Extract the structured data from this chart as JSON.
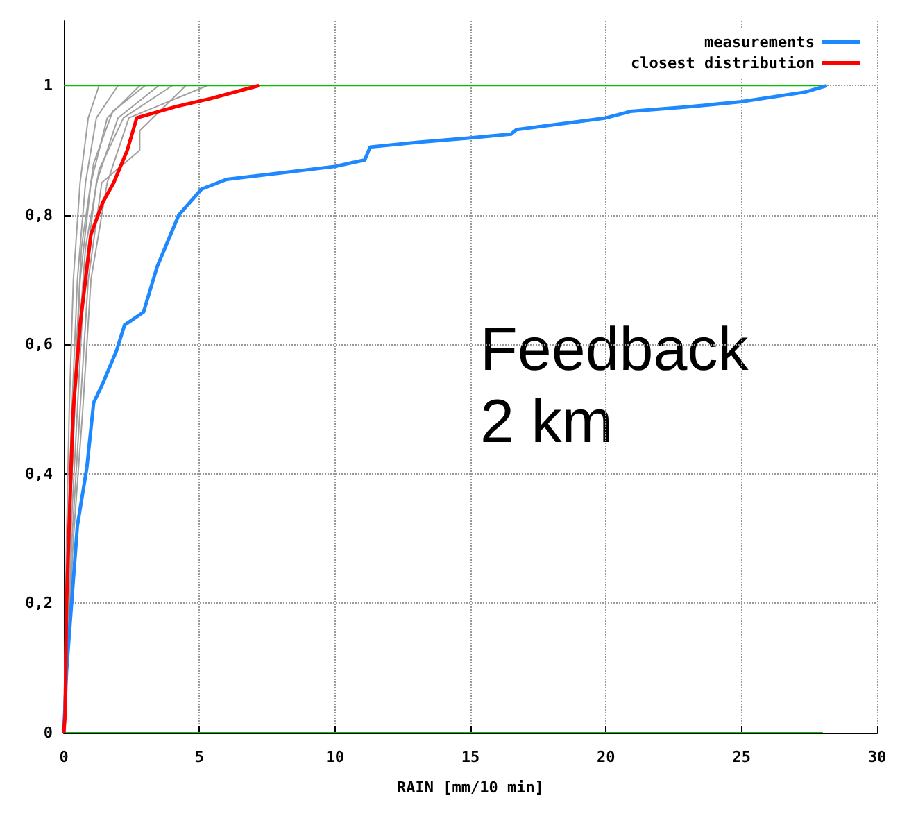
{
  "chart_data": {
    "type": "line",
    "xlabel": "RAIN [mm/10 min]",
    "xlim": [
      0,
      30
    ],
    "xticks": [
      0,
      5,
      10,
      15,
      20,
      25,
      30
    ],
    "ylim": [
      0,
      1.1
    ],
    "yticks": [
      0,
      {
        "value": 0.2,
        "label": "0,2"
      },
      {
        "value": 0.4,
        "label": "0,4"
      },
      {
        "value": 0.6,
        "label": "0,6"
      },
      {
        "value": 0.8,
        "label": "0,8"
      },
      1
    ],
    "grid": true,
    "legend": "top right",
    "marker": "none",
    "line_style": "solid",
    "annotations": [
      "Feedback\n2 km"
    ],
    "series": [
      {
        "color": "#a0a0a0",
        "x": [
          0,
          0.1,
          0.2,
          0.35,
          0.6,
          0.9,
          1.3
        ],
        "values": [
          0,
          0.3,
          0.5,
          0.7,
          0.85,
          0.95,
          1
        ]
      },
      {
        "color": "#a0a0a0",
        "x": [
          0,
          0.15,
          0.3,
          0.5,
          0.8,
          1.2,
          2
        ],
        "values": [
          0,
          0.3,
          0.5,
          0.7,
          0.85,
          0.95,
          1
        ]
      },
      {
        "color": "#a0a0a0",
        "x": [
          0,
          0.2,
          0.4,
          0.6,
          1,
          1.6,
          2.8
        ],
        "values": [
          0,
          0.3,
          0.5,
          0.7,
          0.85,
          0.95,
          1
        ]
      },
      {
        "color": "#a0a0a0",
        "x": [
          0,
          0.25,
          0.5,
          0.75,
          1.2,
          2,
          3.5
        ],
        "values": [
          0,
          0.3,
          0.5,
          0.7,
          0.85,
          0.95,
          1
        ]
      },
      {
        "color": "#a0a0a0",
        "x": [
          0,
          0.3,
          0.6,
          0.9,
          1.4,
          2.8,
          2.8,
          4.5
        ],
        "values": [
          0,
          0.3,
          0.5,
          0.7,
          0.85,
          0.9,
          0.93,
          1
        ]
      },
      {
        "color": "#a0a0a0",
        "x": [
          0,
          0.35,
          0.7,
          1,
          1.6,
          2.4,
          5.3
        ],
        "values": [
          0,
          0.3,
          0.5,
          0.7,
          0.85,
          0.95,
          1
        ]
      },
      {
        "color": "#a0a0a0",
        "x": [
          0,
          0.15,
          0.35,
          0.65,
          1.1,
          1.8,
          3
        ],
        "values": [
          0,
          0.25,
          0.5,
          0.75,
          0.88,
          0.96,
          1
        ]
      },
      {
        "color": "#a0a0a0",
        "x": [
          0,
          0.25,
          0.45,
          0.8,
          1.3,
          2.2,
          4
        ],
        "values": [
          0,
          0.35,
          0.55,
          0.75,
          0.87,
          0.95,
          1
        ]
      },
      {
        "color": "#00c000",
        "x": [
          0,
          28
        ],
        "values": [
          1,
          1
        ]
      },
      {
        "color": "#00c000",
        "x": [
          0,
          28
        ],
        "values": [
          0,
          0
        ]
      },
      {
        "name": "measurements",
        "color": "#1e88ff",
        "x": [
          0,
          0.1,
          0.25,
          0.5,
          0.85,
          1.1,
          1.44,
          1.94,
          2.24,
          2.94,
          3.44,
          4.24,
          5.08,
          6,
          8,
          10,
          11.1,
          11.3,
          13,
          15,
          16.5,
          16.7,
          20,
          20.9,
          23,
          25,
          27.35,
          28.15
        ],
        "values": [
          0,
          0.095,
          0.18,
          0.32,
          0.41,
          0.51,
          0.54,
          0.59,
          0.63,
          0.65,
          0.72,
          0.8,
          0.84,
          0.855,
          0.865,
          0.875,
          0.885,
          0.905,
          0.912,
          0.919,
          0.925,
          0.932,
          0.95,
          0.96,
          0.967,
          0.975,
          0.99,
          1
        ]
      },
      {
        "name": "closest distribution",
        "color": "#ff0000",
        "x": [
          0,
          0.05,
          0.1,
          0.3,
          0.35,
          0.6,
          1,
          1.44,
          1.84,
          2.34,
          2.69,
          4.09,
          5.43,
          7.2
        ],
        "values": [
          0,
          0.03,
          0.2,
          0.45,
          0.5,
          0.63,
          0.77,
          0.82,
          0.85,
          0.9,
          0.95,
          0.967,
          0.98,
          1
        ]
      }
    ]
  }
}
